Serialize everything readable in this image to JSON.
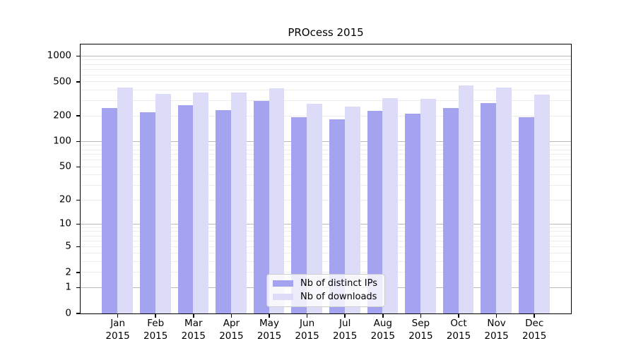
{
  "chart_data": {
    "type": "bar",
    "title": "PROcess 2015",
    "categories": [
      "Jan",
      "Feb",
      "Mar",
      "Apr",
      "May",
      "Jun",
      "Jul",
      "Aug",
      "Sep",
      "Oct",
      "Nov",
      "Dec"
    ],
    "category_year": "2015",
    "series": [
      {
        "name": "Nb of distinct IPs",
        "color": "#a3a3f0",
        "values": [
          247,
          220,
          266,
          235,
          299,
          193,
          183,
          231,
          214,
          250,
          284,
          193
        ]
      },
      {
        "name": "Nb of downloads",
        "color": "#dcdcf8",
        "values": [
          430,
          362,
          378,
          376,
          424,
          277,
          260,
          323,
          321,
          459,
          430,
          357
        ]
      }
    ],
    "xlabel": "",
    "ylabel": "",
    "y_scale": "log10(value+1)",
    "ylim": [
      0,
      1400
    ],
    "y_ticks": [
      0,
      1,
      2,
      5,
      10,
      20,
      50,
      100,
      200,
      500,
      1000
    ],
    "y_major_gridlines": [
      1,
      10,
      100,
      1000
    ],
    "y_minor_gridlines": [
      2,
      3,
      4,
      5,
      6,
      7,
      8,
      9,
      20,
      30,
      40,
      50,
      60,
      70,
      80,
      90,
      200,
      300,
      400,
      500,
      600,
      700,
      800,
      900
    ],
    "grid": "horizontal",
    "legend_position": "lower-center-inside",
    "colors": {
      "axis": "#000000",
      "major_grid": "#b9b9b9",
      "minor_grid": "#ececec",
      "legend_border": "#cccccc",
      "background": "#ffffff"
    }
  }
}
